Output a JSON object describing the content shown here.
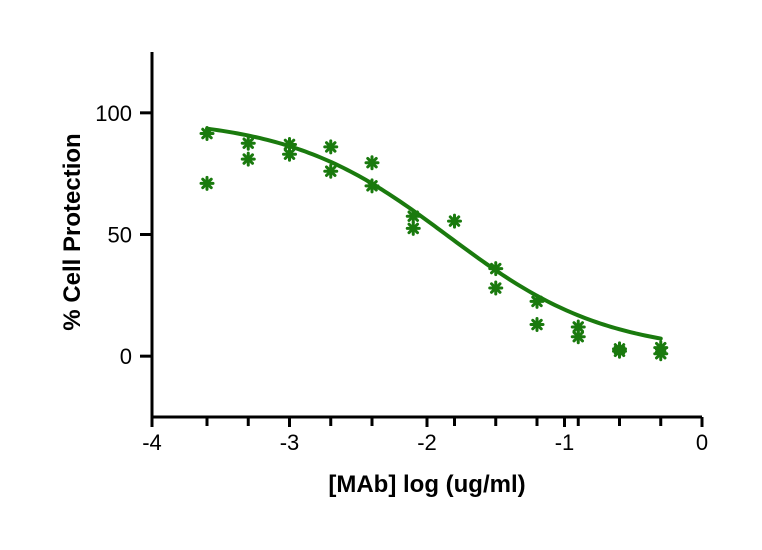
{
  "chart_data": {
    "type": "scatter",
    "title": "",
    "xlabel": "[MAb] log (ug/ml)",
    "ylabel": "% Cell Protection",
    "xlim": [
      -4,
      0
    ],
    "ylim": [
      -25,
      125
    ],
    "xticks": [
      -4,
      -3,
      -2,
      -1,
      0
    ],
    "xtick_labels": [
      "-4",
      "-3",
      "-2",
      "-1",
      "0"
    ],
    "xminor_ticks": [
      -3.6,
      -3.3,
      -2.7,
      -2.4,
      -1.8,
      -1.5,
      -1.2,
      -0.9,
      -0.6,
      -0.3
    ],
    "yticks": [
      0,
      50,
      100
    ],
    "ytick_labels": [
      "0",
      "50",
      "100"
    ],
    "grid": false,
    "legend": "none",
    "color": "#1a7a0e",
    "series": [
      {
        "type": "scatter",
        "marker": "asterisk",
        "points": [
          [
            -3.6,
            91.5
          ],
          [
            -3.6,
            71
          ],
          [
            -3.3,
            87.5
          ],
          [
            -3.3,
            81
          ],
          [
            -3.0,
            87
          ],
          [
            -3.0,
            83
          ],
          [
            -2.7,
            86
          ],
          [
            -2.7,
            76
          ],
          [
            -2.4,
            79.5
          ],
          [
            -2.4,
            70
          ],
          [
            -2.1,
            57.5
          ],
          [
            -2.1,
            52.5
          ],
          [
            -1.8,
            55.5
          ],
          [
            -1.5,
            36
          ],
          [
            -1.5,
            28
          ],
          [
            -1.2,
            22.5
          ],
          [
            -1.2,
            13
          ],
          [
            -0.9,
            12
          ],
          [
            -0.9,
            8
          ],
          [
            -0.6,
            3
          ],
          [
            -0.6,
            2
          ],
          [
            -0.3,
            3.5
          ],
          [
            -0.3,
            1
          ]
        ]
      },
      {
        "type": "line",
        "fit": "four-parameter logistic",
        "top": 98,
        "bottom": 1,
        "log_ic50": -1.85,
        "hill_slope": -0.75,
        "x_range": [
          -3.6,
          -0.3
        ]
      }
    ]
  }
}
